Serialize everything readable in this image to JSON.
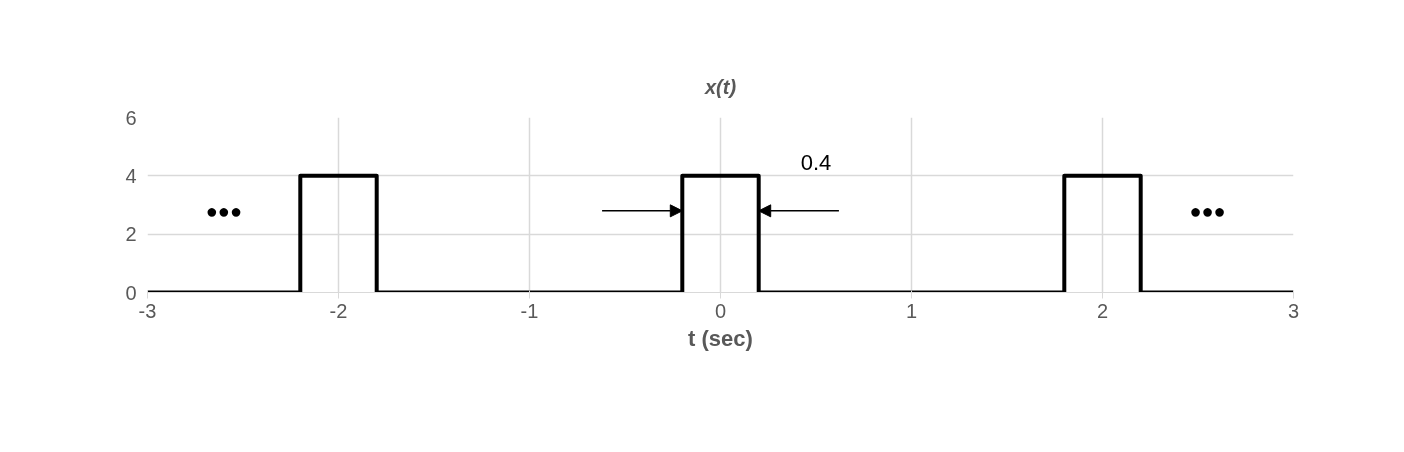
{
  "chart_data": {
    "type": "line",
    "title": "x(t)",
    "xlabel": "t (sec)",
    "x": [
      -3,
      -2.2,
      -2.2,
      -1.8,
      -1.8,
      -0.2,
      -0.2,
      0.2,
      0.2,
      1.8,
      1.8,
      2.2,
      2.2,
      3
    ],
    "series": [
      {
        "color": "#000000",
        "values": [
          0,
          0,
          4,
          4,
          0,
          0,
          4,
          4,
          0,
          0,
          4,
          4,
          0,
          0
        ]
      }
    ],
    "xlim": [
      -3,
      3
    ],
    "ylim": [
      0,
      6
    ],
    "xticks": [
      -3,
      -2,
      -1,
      0,
      1,
      2,
      3
    ],
    "yticks": [
      0,
      2,
      4,
      6
    ],
    "grid": true,
    "marker": "none",
    "line_style": "solid",
    "annotations": [
      "0.4",
      "●●●",
      "●●●"
    ]
  }
}
